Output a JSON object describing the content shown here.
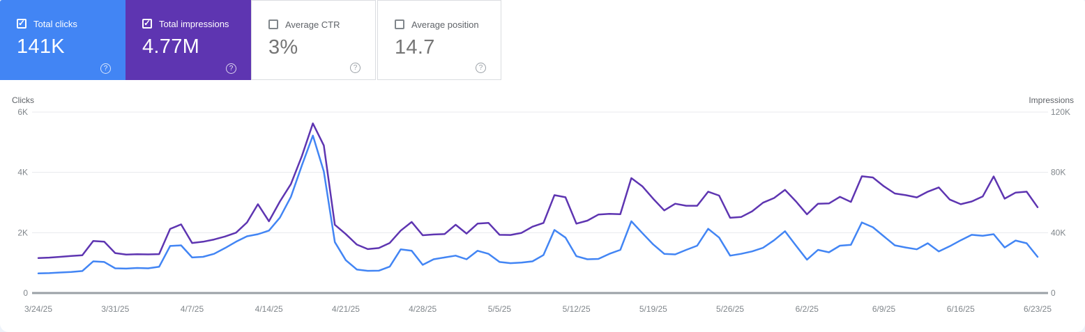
{
  "cards": [
    {
      "label": "Total clicks",
      "value": "141K",
      "checked": true,
      "color": "#4285f4"
    },
    {
      "label": "Total impressions",
      "value": "4.77M",
      "checked": true,
      "color": "#5e35b1"
    },
    {
      "label": "Average CTR",
      "value": "3%",
      "checked": false
    },
    {
      "label": "Average position",
      "value": "14.7",
      "checked": false
    }
  ],
  "chart_data": {
    "type": "line",
    "grid": "horizontal",
    "left_axis": {
      "title": "Clicks",
      "ticks": [
        "0",
        "2K",
        "4K",
        "6K"
      ],
      "range": [
        0,
        6000
      ]
    },
    "right_axis": {
      "title": "Impressions",
      "ticks": [
        "0",
        "40K",
        "80K",
        "120K"
      ],
      "range": [
        0,
        120000
      ]
    },
    "x_tick_labels": [
      "3/24/25",
      "3/31/25",
      "4/7/25",
      "4/14/25",
      "4/21/25",
      "4/28/25",
      "5/5/25",
      "5/12/25",
      "5/19/25",
      "5/26/25",
      "6/2/25",
      "6/9/25",
      "6/16/25",
      "6/23/25"
    ],
    "dates": [
      "3/24/25",
      "3/25/25",
      "3/26/25",
      "3/27/25",
      "3/28/25",
      "3/29/25",
      "3/30/25",
      "3/31/25",
      "4/1/25",
      "4/2/25",
      "4/3/25",
      "4/4/25",
      "4/5/25",
      "4/6/25",
      "4/7/25",
      "4/8/25",
      "4/9/25",
      "4/10/25",
      "4/11/25",
      "4/12/25",
      "4/13/25",
      "4/14/25",
      "4/15/25",
      "4/16/25",
      "4/17/25",
      "4/18/25",
      "4/19/25",
      "4/20/25",
      "4/21/25",
      "4/22/25",
      "4/23/25",
      "4/24/25",
      "4/25/25",
      "4/26/25",
      "4/27/25",
      "4/28/25",
      "4/29/25",
      "4/30/25",
      "5/1/25",
      "5/2/25",
      "5/3/25",
      "5/4/25",
      "5/5/25",
      "5/6/25",
      "5/7/25",
      "5/8/25",
      "5/9/25",
      "5/10/25",
      "5/11/25",
      "5/12/25",
      "5/13/25",
      "5/14/25",
      "5/15/25",
      "5/16/25",
      "5/17/25",
      "5/18/25",
      "5/19/25",
      "5/20/25",
      "5/21/25",
      "5/22/25",
      "5/23/25",
      "5/24/25",
      "5/25/25",
      "5/26/25",
      "5/27/25",
      "5/28/25",
      "5/29/25",
      "5/30/25",
      "5/31/25",
      "6/1/25",
      "6/2/25",
      "6/3/25",
      "6/4/25",
      "6/5/25",
      "6/6/25",
      "6/7/25",
      "6/8/25",
      "6/9/25",
      "6/10/25",
      "6/11/25",
      "6/12/25",
      "6/13/25",
      "6/14/25",
      "6/15/25",
      "6/16/25",
      "6/17/25",
      "6/18/25",
      "6/19/25",
      "6/20/25",
      "6/21/25",
      "6/22/25",
      "6/23/25"
    ],
    "series": [
      {
        "name": "Clicks",
        "axis": "left",
        "color": "#4285f4",
        "values": [
          650,
          660,
          680,
          700,
          730,
          1050,
          1030,
          820,
          810,
          830,
          820,
          870,
          1560,
          1580,
          1180,
          1200,
          1300,
          1490,
          1700,
          1880,
          1950,
          2070,
          2500,
          3190,
          4230,
          5220,
          4030,
          1690,
          1090,
          780,
          735,
          740,
          875,
          1450,
          1400,
          935,
          1120,
          1180,
          1240,
          1120,
          1400,
          1300,
          1030,
          990,
          1010,
          1050,
          1260,
          2090,
          1840,
          1220,
          1120,
          1130,
          1300,
          1430,
          2380,
          1990,
          1610,
          1300,
          1280,
          1430,
          1570,
          2130,
          1840,
          1240,
          1300,
          1380,
          1500,
          1750,
          2050,
          1570,
          1105,
          1430,
          1350,
          1570,
          1600,
          2340,
          2180,
          1880,
          1580,
          1510,
          1450,
          1650,
          1380,
          1550,
          1750,
          1930,
          1900,
          1950,
          1510,
          1740,
          1650,
          1200
        ]
      },
      {
        "name": "Impressions",
        "axis": "right",
        "color": "#5e35b1",
        "values": [
          23200,
          23500,
          24000,
          24600,
          25000,
          34500,
          34000,
          26500,
          25500,
          25700,
          25600,
          25800,
          42500,
          45500,
          33200,
          34000,
          35500,
          37500,
          40000,
          46800,
          58900,
          47600,
          60700,
          72300,
          90800,
          112500,
          97800,
          45300,
          39100,
          32100,
          29100,
          29800,
          33200,
          41400,
          47100,
          38300,
          38800,
          39100,
          45300,
          39400,
          46000,
          46500,
          38600,
          38500,
          39900,
          44000,
          46500,
          64900,
          63500,
          46000,
          48000,
          52000,
          52500,
          52300,
          76200,
          70800,
          62500,
          54800,
          59200,
          57900,
          57900,
          67200,
          64600,
          49900,
          50400,
          54200,
          59900,
          63000,
          68400,
          60700,
          52200,
          59200,
          59400,
          63800,
          60400,
          77400,
          76600,
          70800,
          66000,
          64900,
          63400,
          67200,
          70000,
          62000,
          58900,
          60700,
          64000,
          77300,
          62600,
          66600,
          67200,
          56900
        ]
      }
    ]
  }
}
